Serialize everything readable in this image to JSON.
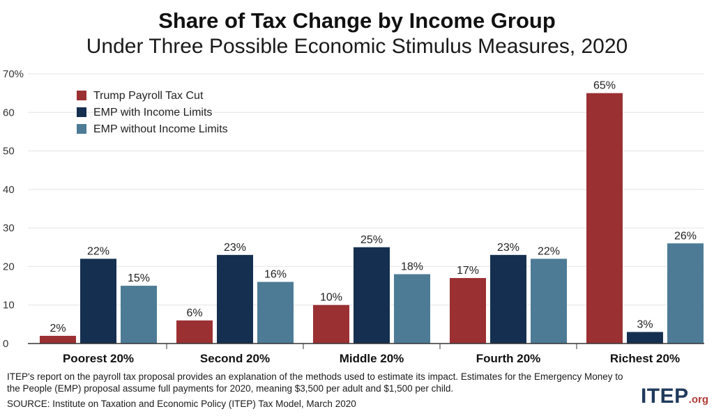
{
  "chart_data": {
    "type": "bar",
    "title": "Share of Tax Change by Income Group",
    "subtitle": "Under Three Possible Economic Stimulus Measures, 2020",
    "categories": [
      "Poorest 20%",
      "Second 20%",
      "Middle 20%",
      "Fourth 20%",
      "Richest 20%"
    ],
    "series": [
      {
        "name": "Trump Payroll Tax Cut",
        "color": "#9b3033",
        "values": [
          2,
          6,
          10,
          17,
          65
        ]
      },
      {
        "name": "EMP with Income Limits",
        "color": "#152f50",
        "values": [
          22,
          23,
          25,
          23,
          3
        ]
      },
      {
        "name": "EMP without Income Limits",
        "color": "#4d7b96",
        "values": [
          15,
          16,
          18,
          22,
          26
        ]
      }
    ],
    "yticks": [
      "0",
      "10",
      "20",
      "30",
      "40",
      "50",
      "60",
      "70%"
    ],
    "ylim": [
      0,
      70
    ],
    "value_suffix": "%",
    "legend_position": "top-left",
    "grid": true
  },
  "footer": {
    "note": "ITEP's report on the payroll tax proposal provides an explanation of the methods used to estimate its impact.  Estimates for the Emergency Money to the People (EMP) proposal assume full payments for 2020, meaning $3,500 per adult and $1,500 per child.",
    "source": "SOURCE: Institute on Taxation and Economic Policy (ITEP) Tax Model, March 2020"
  },
  "logo": {
    "main": "ITEP",
    "suffix": ".org"
  }
}
